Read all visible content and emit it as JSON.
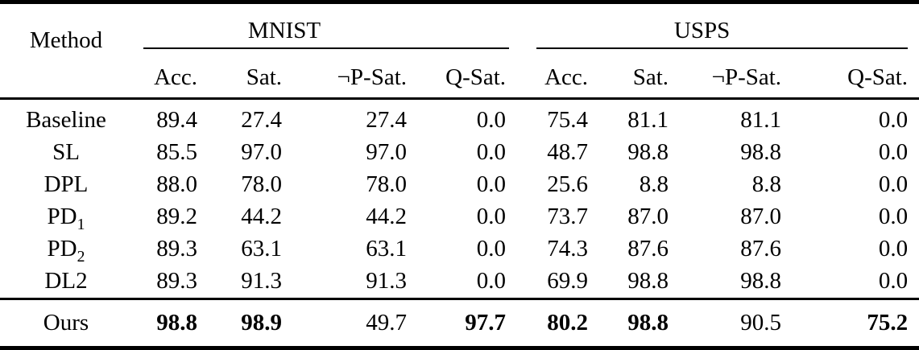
{
  "table": {
    "method_header": "Method",
    "groups": [
      {
        "label": "MNIST",
        "columns": [
          "Acc.",
          "Sat.",
          "¬P-Sat.",
          "Q-Sat."
        ]
      },
      {
        "label": "USPS",
        "columns": [
          "Acc.",
          "Sat.",
          "¬P-Sat.",
          "Q-Sat."
        ]
      }
    ],
    "body_rows": [
      {
        "method": "Baseline",
        "sub": "",
        "values": [
          "89.4",
          "27.4",
          "27.4",
          "0.0",
          "75.4",
          "81.1",
          "81.1",
          "0.0"
        ],
        "bold": [
          false,
          false,
          false,
          false,
          false,
          false,
          false,
          false
        ]
      },
      {
        "method": "SL",
        "sub": "",
        "values": [
          "85.5",
          "97.0",
          "97.0",
          "0.0",
          "48.7",
          "98.8",
          "98.8",
          "0.0"
        ],
        "bold": [
          false,
          false,
          false,
          false,
          false,
          false,
          false,
          false
        ]
      },
      {
        "method": "DPL",
        "sub": "",
        "values": [
          "88.0",
          "78.0",
          "78.0",
          "0.0",
          "25.6",
          "8.8",
          "8.8",
          "0.0"
        ],
        "bold": [
          false,
          false,
          false,
          false,
          false,
          false,
          false,
          false
        ]
      },
      {
        "method": "PD",
        "sub": "1",
        "values": [
          "89.2",
          "44.2",
          "44.2",
          "0.0",
          "73.7",
          "87.0",
          "87.0",
          "0.0"
        ],
        "bold": [
          false,
          false,
          false,
          false,
          false,
          false,
          false,
          false
        ]
      },
      {
        "method": "PD",
        "sub": "2",
        "values": [
          "89.3",
          "63.1",
          "63.1",
          "0.0",
          "74.3",
          "87.6",
          "87.6",
          "0.0"
        ],
        "bold": [
          false,
          false,
          false,
          false,
          false,
          false,
          false,
          false
        ]
      },
      {
        "method": "DL2",
        "sub": "",
        "values": [
          "89.3",
          "91.3",
          "91.3",
          "0.0",
          "69.9",
          "98.8",
          "98.8",
          "0.0"
        ],
        "bold": [
          false,
          false,
          false,
          false,
          false,
          false,
          false,
          false
        ]
      }
    ],
    "footer_rows": [
      {
        "method": "Ours",
        "sub": "",
        "values": [
          "98.8",
          "98.9",
          "49.7",
          "97.7",
          "80.2",
          "98.8",
          "90.5",
          "75.2"
        ],
        "bold": [
          true,
          true,
          false,
          true,
          true,
          true,
          false,
          true
        ]
      }
    ]
  },
  "chart_data": {
    "type": "table",
    "column_groups": [
      "MNIST",
      "USPS"
    ],
    "columns": [
      "Method",
      "MNIST Acc.",
      "MNIST Sat.",
      "MNIST ¬P-Sat.",
      "MNIST Q-Sat.",
      "USPS Acc.",
      "USPS Sat.",
      "USPS ¬P-Sat.",
      "USPS Q-Sat."
    ],
    "rows": [
      [
        "Baseline",
        89.4,
        27.4,
        27.4,
        0.0,
        75.4,
        81.1,
        81.1,
        0.0
      ],
      [
        "SL",
        85.5,
        97.0,
        97.0,
        0.0,
        48.7,
        98.8,
        98.8,
        0.0
      ],
      [
        "DPL",
        88.0,
        78.0,
        78.0,
        0.0,
        25.6,
        8.8,
        8.8,
        0.0
      ],
      [
        "PD1",
        89.2,
        44.2,
        44.2,
        0.0,
        73.7,
        87.0,
        87.0,
        0.0
      ],
      [
        "PD2",
        89.3,
        63.1,
        63.1,
        0.0,
        74.3,
        87.6,
        87.6,
        0.0
      ],
      [
        "DL2",
        89.3,
        91.3,
        91.3,
        0.0,
        69.9,
        98.8,
        98.8,
        0.0
      ],
      [
        "Ours",
        98.8,
        98.9,
        49.7,
        97.7,
        80.2,
        98.8,
        90.5,
        75.2
      ]
    ]
  }
}
